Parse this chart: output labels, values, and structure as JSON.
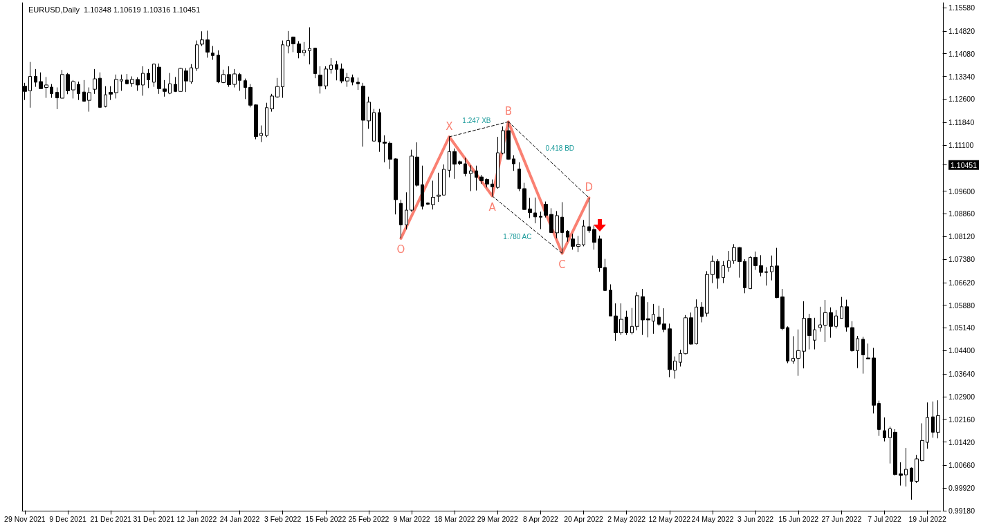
{
  "chart_data": {
    "type": "candlestick",
    "title": "EURUSD,Daily  1.10348 1.10619 1.10316 1.10451",
    "color": "#000000",
    "categories": [
      "29 Nov 2021",
      null,
      null,
      null,
      null,
      null,
      null,
      null,
      "9 Dec 2021",
      null,
      null,
      null,
      null,
      null,
      null,
      null,
      "21 Dec 2021",
      null,
      null,
      null,
      null,
      null,
      null,
      null,
      "31 Dec 2021",
      null,
      null,
      null,
      null,
      null,
      null,
      null,
      "12 Jan 2022",
      null,
      null,
      null,
      null,
      null,
      null,
      null,
      "24 Jan 2022",
      null,
      null,
      null,
      null,
      null,
      null,
      null,
      "3 Feb 2022",
      null,
      null,
      null,
      null,
      null,
      null,
      null,
      "15 Feb 2022",
      null,
      null,
      null,
      null,
      null,
      null,
      null,
      "25 Feb 2022",
      null,
      null,
      null,
      null,
      null,
      null,
      null,
      "9 Mar 2022",
      null,
      null,
      null,
      null,
      null,
      null,
      null,
      "18 Mar 2022",
      null,
      null,
      null,
      null,
      null,
      null,
      null,
      "29 Mar 2022",
      null,
      null,
      null,
      null,
      null,
      null,
      null,
      "8 Apr 2022",
      null,
      null,
      null,
      null,
      null,
      null,
      null,
      "20 Apr 2022",
      null,
      null,
      null,
      null,
      null,
      null,
      null,
      "2 May 2022",
      null,
      null,
      null,
      null,
      null,
      null,
      null,
      "12 May 2022",
      null,
      null,
      null,
      null,
      null,
      null,
      null,
      "24 May 2022",
      null,
      null,
      null,
      null,
      null,
      null,
      null,
      "3 Jun 2022",
      null,
      null,
      null,
      null,
      null,
      null,
      null,
      "15 Jun 2022",
      null,
      null,
      null,
      null,
      null,
      null,
      null,
      "27 Jun 2022",
      null,
      null,
      null,
      null,
      null,
      null,
      null,
      "7 Jul 2022",
      null,
      null,
      null,
      null,
      null,
      null,
      null,
      "19 Jul 2022",
      null,
      null
    ],
    "ohlc": [
      [
        1.1302,
        1.1313,
        1.1257,
        1.1285
      ],
      [
        1.1287,
        1.1381,
        1.1232,
        1.1334
      ],
      [
        1.1334,
        1.1358,
        1.13,
        1.1315
      ],
      [
        1.1317,
        1.1347,
        1.1294,
        1.1294
      ],
      [
        1.1298,
        1.1332,
        1.1264,
        1.1306
      ],
      [
        1.1299,
        1.1309,
        1.1264,
        1.1278
      ],
      [
        1.1282,
        1.1298,
        1.1227,
        1.1264
      ],
      [
        1.1263,
        1.1355,
        1.1263,
        1.134
      ],
      [
        1.134,
        1.1345,
        1.1276,
        1.1287
      ],
      [
        1.129,
        1.1322,
        1.1262,
        1.1317
      ],
      [
        1.1308,
        1.1317,
        1.1257,
        1.1278
      ],
      [
        1.1283,
        1.1322,
        1.1252,
        1.1253
      ],
      [
        1.1256,
        1.1298,
        1.1219,
        1.1281
      ],
      [
        1.1292,
        1.1358,
        1.1277,
        1.1326
      ],
      [
        1.1328,
        1.1347,
        1.1233,
        1.1233
      ],
      [
        1.1236,
        1.1302,
        1.1233,
        1.1274
      ],
      [
        1.1282,
        1.1302,
        1.1257,
        1.1276
      ],
      [
        1.1281,
        1.134,
        1.1262,
        1.1324
      ],
      [
        1.1319,
        1.134,
        1.1287,
        1.1324
      ],
      [
        1.1322,
        1.1342,
        1.1308,
        1.131
      ],
      [
        1.1311,
        1.1334,
        1.13,
        1.1324
      ],
      [
        1.1324,
        1.1331,
        1.1287,
        1.1306
      ],
      [
        1.1306,
        1.1367,
        1.1271,
        1.1344
      ],
      [
        1.1344,
        1.1358,
        1.1296,
        1.1323
      ],
      [
        1.1315,
        1.1376,
        1.13,
        1.1374
      ],
      [
        1.1364,
        1.1376,
        1.1277,
        1.1294
      ],
      [
        1.1293,
        1.1322,
        1.1268,
        1.1285
      ],
      [
        1.1279,
        1.1345,
        1.1276,
        1.131
      ],
      [
        1.1308,
        1.1332,
        1.1283,
        1.1285
      ],
      [
        1.1285,
        1.1362,
        1.1285,
        1.136
      ],
      [
        1.1352,
        1.1361,
        1.1283,
        1.1319
      ],
      [
        1.1316,
        1.1374,
        1.131,
        1.1362
      ],
      [
        1.136,
        1.1451,
        1.1352,
        1.1437
      ],
      [
        1.1439,
        1.1481,
        1.1433,
        1.1453
      ],
      [
        1.1453,
        1.1483,
        1.1395,
        1.1413
      ],
      [
        1.141,
        1.1433,
        1.1388,
        1.1402
      ],
      [
        1.1403,
        1.1419,
        1.1312,
        1.1316
      ],
      [
        1.1314,
        1.1356,
        1.1312,
        1.134
      ],
      [
        1.134,
        1.1367,
        1.13,
        1.1307
      ],
      [
        1.1308,
        1.1358,
        1.1298,
        1.1342
      ],
      [
        1.134,
        1.1345,
        1.1287,
        1.1321
      ],
      [
        1.132,
        1.1327,
        1.126,
        1.1298
      ],
      [
        1.1298,
        1.1309,
        1.1233,
        1.124
      ],
      [
        1.1241,
        1.1243,
        1.1129,
        1.1138
      ],
      [
        1.1141,
        1.1174,
        1.112,
        1.1148
      ],
      [
        1.1141,
        1.1248,
        1.1136,
        1.1232
      ],
      [
        1.1228,
        1.1277,
        1.1219,
        1.127
      ],
      [
        1.1267,
        1.1329,
        1.1264,
        1.1301
      ],
      [
        1.13,
        1.1451,
        1.1264,
        1.1437
      ],
      [
        1.1433,
        1.1482,
        1.1409,
        1.1451
      ],
      [
        1.1462,
        1.1464,
        1.1413,
        1.144
      ],
      [
        1.144,
        1.1449,
        1.1393,
        1.1411
      ],
      [
        1.1411,
        1.1446,
        1.14,
        1.1419
      ],
      [
        1.1418,
        1.1494,
        1.1373,
        1.1425
      ],
      [
        1.1426,
        1.1427,
        1.1328,
        1.1343
      ],
      [
        1.1338,
        1.1367,
        1.1278,
        1.1303
      ],
      [
        1.1303,
        1.1367,
        1.1292,
        1.1358
      ],
      [
        1.1357,
        1.1394,
        1.1343,
        1.1371
      ],
      [
        1.1372,
        1.1385,
        1.1321,
        1.1357
      ],
      [
        1.1358,
        1.1376,
        1.1312,
        1.1319
      ],
      [
        1.1319,
        1.1345,
        1.13,
        1.133
      ],
      [
        1.133,
        1.134,
        1.1305,
        1.1315
      ],
      [
        1.1315,
        1.133,
        1.129,
        1.131
      ],
      [
        1.1302,
        1.1313,
        1.1105,
        1.1191
      ],
      [
        1.1189,
        1.1268,
        1.1163,
        1.125
      ],
      [
        1.1123,
        1.1228,
        1.1123,
        1.1216
      ],
      [
        1.1216,
        1.1228,
        1.1088,
        1.112
      ],
      [
        1.112,
        1.1142,
        1.1054,
        1.1116
      ],
      [
        1.1116,
        1.1122,
        1.1032,
        1.1064
      ],
      [
        1.1065,
        1.1067,
        1.0884,
        1.0932
      ],
      [
        1.092,
        1.0932,
        1.0806,
        1.085
      ],
      [
        1.085,
        1.0956,
        1.0835,
        1.0898
      ],
      [
        1.0898,
        1.1095,
        1.0893,
        1.1074
      ],
      [
        1.1071,
        1.1119,
        1.0975,
        1.0979
      ],
      [
        1.0981,
        1.1043,
        1.09,
        1.0911
      ],
      [
        1.0921,
        1.0923,
        1.0915,
        1.0917
      ],
      [
        1.0916,
        1.0994,
        1.09,
        1.094
      ],
      [
        1.0943,
        1.102,
        1.0925,
        1.0947
      ],
      [
        1.0947,
        1.1047,
        1.0947,
        1.1031
      ],
      [
        1.1028,
        1.1137,
        1.1005,
        1.1089
      ],
      [
        1.1089,
        1.1099,
        1.1,
        1.1048
      ],
      [
        1.1056,
        1.1059,
        1.1045,
        1.105
      ],
      [
        1.1049,
        1.1069,
        1.1008,
        1.1017
      ],
      [
        1.1017,
        1.1044,
        1.096,
        1.1026
      ],
      [
        1.1026,
        1.1043,
        1.0962,
        1.1005
      ],
      [
        1.1006,
        1.1013,
        1.0984,
        1.0994
      ],
      [
        1.0998,
        1.1001,
        1.0972,
        1.0983
      ],
      [
        1.0983,
        1.0998,
        1.0944,
        1.0974
      ],
      [
        1.0972,
        1.1137,
        1.0968,
        1.1085
      ],
      [
        1.1084,
        1.1171,
        1.108,
        1.1157
      ],
      [
        1.1157,
        1.1186,
        1.1062,
        1.1064
      ],
      [
        1.1065,
        1.1077,
        1.1026,
        1.1049
      ],
      [
        1.1032,
        1.1054,
        1.096,
        1.0968
      ],
      [
        1.0968,
        1.0987,
        1.0899,
        1.09
      ],
      [
        1.0902,
        1.0938,
        1.0872,
        1.089
      ],
      [
        1.0889,
        1.0939,
        1.0855,
        1.0876
      ],
      [
        1.0878,
        1.0893,
        1.0836,
        1.0875
      ],
      [
        1.0917,
        1.0926,
        1.0874,
        1.0881
      ],
      [
        1.0884,
        1.0904,
        1.0825,
        1.0825
      ],
      [
        1.0824,
        1.0895,
        1.0806,
        1.088
      ],
      [
        1.0875,
        1.0924,
        1.0757,
        1.0825
      ],
      [
        1.0829,
        1.0833,
        1.0795,
        1.081
      ],
      [
        1.0804,
        1.0821,
        1.0769,
        1.078
      ],
      [
        1.078,
        1.0814,
        1.0761,
        1.0786
      ],
      [
        1.0785,
        1.0866,
        1.078,
        1.0846
      ],
      [
        1.0844,
        1.0938,
        1.0824,
        1.0831
      ],
      [
        1.0835,
        1.0848,
        1.0769,
        1.0793
      ],
      [
        1.0804,
        1.0815,
        1.0697,
        1.071
      ],
      [
        1.0711,
        1.0739,
        1.0636,
        1.0636
      ],
      [
        1.0637,
        1.0656,
        1.0553,
        1.0553
      ],
      [
        1.0553,
        1.0594,
        1.0472,
        1.0498
      ],
      [
        1.0498,
        1.0594,
        1.0491,
        1.0542
      ],
      [
        1.0549,
        1.057,
        1.0491,
        1.0498
      ],
      [
        1.0498,
        1.0579,
        1.0493,
        1.0519
      ],
      [
        1.0519,
        1.063,
        1.0506,
        1.0619
      ],
      [
        1.0616,
        1.0641,
        1.0491,
        1.054
      ],
      [
        1.0544,
        1.0598,
        1.0483,
        1.054
      ],
      [
        1.0536,
        1.0592,
        1.0495,
        1.0558
      ],
      [
        1.0549,
        1.0586,
        1.0521,
        1.0526
      ],
      [
        1.0527,
        1.0578,
        1.05,
        1.0509
      ],
      [
        1.0511,
        1.0528,
        1.0353,
        1.0378
      ],
      [
        1.0376,
        1.0421,
        1.0349,
        1.0406
      ],
      [
        1.0402,
        1.0443,
        1.0388,
        1.0431
      ],
      [
        1.043,
        1.0556,
        1.0428,
        1.0547
      ],
      [
        1.0547,
        1.0564,
        1.046,
        1.0461
      ],
      [
        1.0462,
        1.0607,
        1.046,
        1.0582
      ],
      [
        1.0582,
        1.0598,
        1.0532,
        1.0551
      ],
      [
        1.0562,
        1.0699,
        1.0551,
        1.0688
      ],
      [
        1.0688,
        1.075,
        1.066,
        1.0731
      ],
      [
        1.0731,
        1.0738,
        1.0642,
        1.0676
      ],
      [
        1.0678,
        1.0732,
        1.066,
        1.0717
      ],
      [
        1.0711,
        1.0765,
        1.0697,
        1.0733
      ],
      [
        1.0733,
        1.0787,
        1.0723,
        1.0776
      ],
      [
        1.0776,
        1.0778,
        1.0678,
        1.073
      ],
      [
        1.0731,
        1.0738,
        1.0627,
        1.0645
      ],
      [
        1.0642,
        1.0747,
        1.0641,
        1.0744
      ],
      [
        1.0744,
        1.0763,
        1.0703,
        1.0717
      ],
      [
        1.0717,
        1.0751,
        1.0682,
        1.0695
      ],
      [
        1.0697,
        1.0712,
        1.0652,
        1.0695
      ],
      [
        1.0697,
        1.075,
        1.0669,
        1.0715
      ],
      [
        1.0716,
        1.0775,
        1.0611,
        1.0613
      ],
      [
        1.0615,
        1.0641,
        1.0506,
        1.0512
      ],
      [
        1.0515,
        1.0519,
        1.0399,
        1.0406
      ],
      [
        1.0406,
        1.0487,
        1.0397,
        1.0415
      ],
      [
        1.0415,
        1.0509,
        1.0358,
        1.044
      ],
      [
        1.0438,
        1.0601,
        1.0382,
        1.0545
      ],
      [
        1.0545,
        1.056,
        1.0444,
        1.0489
      ],
      [
        1.0474,
        1.0547,
        1.0444,
        1.0508
      ],
      [
        1.0515,
        1.0583,
        1.0502,
        1.0524
      ],
      [
        1.0523,
        1.0605,
        1.0468,
        1.0564
      ],
      [
        1.0564,
        1.0581,
        1.0482,
        1.0519
      ],
      [
        1.0519,
        1.0572,
        1.0512,
        1.0553
      ],
      [
        1.0545,
        1.0615,
        1.0545,
        1.0583
      ],
      [
        1.0583,
        1.0606,
        1.0502,
        1.0517
      ],
      [
        1.0515,
        1.0536,
        1.0436,
        1.044
      ],
      [
        1.044,
        1.0488,
        1.0383,
        1.0479
      ],
      [
        1.0477,
        1.0485,
        1.0365,
        1.0426
      ],
      [
        1.0416,
        1.0463,
        1.0413,
        1.0413
      ],
      [
        1.0416,
        1.0449,
        1.0235,
        1.0262
      ],
      [
        1.0268,
        1.0277,
        1.0162,
        1.0183
      ],
      [
        1.0179,
        1.0222,
        1.0144,
        1.0156
      ],
      [
        1.0156,
        1.0192,
        1.0072,
        1.0185
      ],
      [
        1.0174,
        1.0184,
        1.0033,
        1.0036
      ],
      [
        1.0038,
        1.0076,
        1.0,
        1.0033
      ],
      [
        1.0035,
        1.0123,
        0.9997,
        1.0053
      ],
      [
        1.0057,
        1.0059,
        0.9954,
        1.0014
      ],
      [
        1.0014,
        1.01,
        1.0008,
        1.0087
      ],
      [
        1.0081,
        1.0203,
        1.0079,
        1.0147
      ],
      [
        1.0141,
        1.0271,
        1.012,
        1.0222
      ],
      [
        1.0224,
        1.0274,
        1.0156,
        1.0174
      ],
      [
        1.0174,
        1.0278,
        1.0154,
        1.0228
      ]
    ],
    "series": [
      {
        "type": "line",
        "color": "#fa8072",
        "line_style": "solid",
        "values": [
          null,
          null,
          null,
          null,
          null,
          null,
          null,
          null,
          null,
          null,
          null,
          null,
          null,
          null,
          null,
          null,
          null,
          null,
          null,
          null,
          null,
          null,
          null,
          null,
          null,
          null,
          null,
          null,
          null,
          null,
          null,
          null,
          null,
          null,
          null,
          null,
          null,
          null,
          null,
          null,
          null,
          null,
          null,
          null,
          null,
          null,
          null,
          null,
          null,
          null,
          null,
          null,
          null,
          null,
          null,
          null,
          null,
          null,
          null,
          null,
          null,
          null,
          null,
          null,
          null,
          null,
          null,
          null,
          null,
          null,
          1.0806,
          null,
          null,
          null,
          null,
          null,
          null,
          null,
          null,
          1.1137,
          null,
          null,
          null,
          null,
          null,
          null,
          null,
          1.0944,
          null,
          null,
          1.1186,
          null,
          null,
          null,
          null,
          null,
          null,
          null,
          null,
          null,
          1.0757,
          null,
          null,
          null,
          null,
          1.0938,
          null,
          null,
          null,
          null,
          null,
          null,
          null,
          null,
          null,
          null,
          null,
          null,
          null,
          null,
          null,
          null,
          null,
          null,
          null,
          null,
          null,
          null,
          null,
          null,
          null,
          null,
          null,
          null,
          null,
          null,
          null,
          null,
          null,
          null,
          null,
          null,
          null,
          null,
          null,
          null,
          null,
          null,
          null,
          null,
          null,
          null,
          null,
          null,
          null,
          null,
          null,
          null,
          null,
          null,
          null,
          null,
          null,
          null,
          null,
          null,
          null,
          null,
          null,
          null,
          null
        ]
      },
      {
        "type": "line",
        "color": "#000000",
        "line_style": "dashed",
        "values": [
          null,
          null,
          null,
          null,
          null,
          null,
          null,
          null,
          null,
          null,
          null,
          null,
          null,
          null,
          null,
          null,
          null,
          null,
          null,
          null,
          null,
          null,
          null,
          null,
          null,
          null,
          null,
          null,
          null,
          null,
          null,
          null,
          null,
          null,
          null,
          null,
          null,
          null,
          null,
          null,
          null,
          null,
          null,
          null,
          null,
          null,
          null,
          null,
          null,
          null,
          null,
          null,
          null,
          null,
          null,
          null,
          null,
          null,
          null,
          null,
          null,
          null,
          null,
          null,
          null,
          null,
          null,
          null,
          null,
          null,
          null,
          null,
          null,
          null,
          null,
          null,
          null,
          null,
          null,
          1.1137,
          null,
          null,
          null,
          null,
          null,
          null,
          null,
          null,
          null,
          null,
          1.1186,
          null,
          null,
          null,
          null,
          null,
          null,
          null,
          null,
          null,
          null,
          null,
          null,
          null,
          null,
          null,
          null,
          null,
          null,
          null,
          null,
          null,
          null,
          null,
          null,
          null,
          null,
          null,
          null,
          null,
          null,
          null,
          null,
          null,
          null,
          null,
          null,
          null,
          null,
          null,
          null,
          null,
          null,
          null,
          null,
          null,
          null,
          null,
          null,
          null,
          null,
          null,
          null,
          null,
          null,
          null,
          null,
          null,
          null,
          null,
          null,
          null,
          null,
          null,
          null,
          null,
          null,
          null,
          null,
          null,
          null,
          null,
          null,
          null,
          null,
          null,
          null,
          null,
          null,
          null,
          null
        ]
      },
      {
        "type": "line",
        "color": "#000000",
        "line_style": "dashed",
        "values": [
          null,
          null,
          null,
          null,
          null,
          null,
          null,
          null,
          null,
          null,
          null,
          null,
          null,
          null,
          null,
          null,
          null,
          null,
          null,
          null,
          null,
          null,
          null,
          null,
          null,
          null,
          null,
          null,
          null,
          null,
          null,
          null,
          null,
          null,
          null,
          null,
          null,
          null,
          null,
          null,
          null,
          null,
          null,
          null,
          null,
          null,
          null,
          null,
          null,
          null,
          null,
          null,
          null,
          null,
          null,
          null,
          null,
          null,
          null,
          null,
          null,
          null,
          null,
          null,
          null,
          null,
          null,
          null,
          null,
          null,
          null,
          null,
          null,
          null,
          null,
          null,
          null,
          null,
          null,
          null,
          null,
          null,
          null,
          null,
          null,
          null,
          null,
          null,
          null,
          null,
          1.1186,
          null,
          null,
          null,
          null,
          null,
          null,
          null,
          null,
          null,
          null,
          null,
          null,
          null,
          null,
          1.0938,
          null,
          null,
          null,
          null,
          null,
          null,
          null,
          null,
          null,
          null,
          null,
          null,
          null,
          null,
          null,
          null,
          null,
          null,
          null,
          null,
          null,
          null,
          null,
          null,
          null,
          null,
          null,
          null,
          null,
          null,
          null,
          null,
          null,
          null,
          null,
          null,
          null,
          null,
          null,
          null,
          null,
          null,
          null,
          null,
          null,
          null,
          null,
          null,
          null,
          null,
          null,
          null,
          null,
          null,
          null,
          null,
          null,
          null,
          null,
          null,
          null,
          null,
          null,
          null,
          null
        ]
      },
      {
        "type": "line",
        "color": "#000000",
        "line_style": "dashed",
        "values": [
          null,
          null,
          null,
          null,
          null,
          null,
          null,
          null,
          null,
          null,
          null,
          null,
          null,
          null,
          null,
          null,
          null,
          null,
          null,
          null,
          null,
          null,
          null,
          null,
          null,
          null,
          null,
          null,
          null,
          null,
          null,
          null,
          null,
          null,
          null,
          null,
          null,
          null,
          null,
          null,
          null,
          null,
          null,
          null,
          null,
          null,
          null,
          null,
          null,
          null,
          null,
          null,
          null,
          null,
          null,
          null,
          null,
          null,
          null,
          null,
          null,
          null,
          null,
          null,
          null,
          null,
          null,
          null,
          null,
          null,
          null,
          null,
          null,
          null,
          null,
          null,
          null,
          null,
          null,
          null,
          null,
          null,
          null,
          null,
          null,
          null,
          null,
          1.0944,
          null,
          null,
          null,
          null,
          null,
          null,
          null,
          null,
          null,
          null,
          null,
          null,
          1.0757,
          null,
          null,
          null,
          null,
          null,
          null,
          null,
          null,
          null,
          null,
          null,
          null,
          null,
          null,
          null,
          null,
          null,
          null,
          null,
          null,
          null,
          null,
          null,
          null,
          null,
          null,
          null,
          null,
          null,
          null,
          null,
          null,
          null,
          null,
          null,
          null,
          null,
          null,
          null,
          null,
          null,
          null,
          null,
          null,
          null,
          null,
          null,
          null,
          null,
          null,
          null,
          null,
          null,
          null,
          null,
          null,
          null,
          null,
          null,
          null,
          null,
          null,
          null,
          null,
          null,
          null,
          null,
          null,
          null,
          null
        ]
      }
    ],
    "annotations": [
      {
        "text": "O",
        "y": 1.0806
      },
      {
        "text": "X",
        "y": 1.1137
      },
      {
        "text": "A",
        "y": 1.0944
      },
      {
        "text": "B",
        "y": 1.1186
      },
      {
        "text": "C",
        "y": 1.0757
      },
      {
        "text": "D",
        "y": 1.0938
      },
      "1.247 XB",
      "0.418 BD",
      "1.780 AC"
    ],
    "ylim": [
      0.9918,
      1.1574
    ],
    "yticks": [
      {
        "value": 1.1558,
        "label": "1.15580"
      },
      {
        "value": 1.1482,
        "label": "1.14820"
      },
      {
        "value": 1.1408,
        "label": "1.14080"
      },
      {
        "value": 1.1334,
        "label": "1.13340"
      },
      {
        "value": 1.126,
        "label": "1.12600"
      },
      {
        "value": 1.1184,
        "label": "1.11840"
      },
      {
        "value": 1.111,
        "label": "1.11100"
      },
      {
        "value": 1.10451,
        "label": "1.10451"
      },
      {
        "value": 1.096,
        "label": "1.09600"
      },
      {
        "value": 1.0886,
        "label": "1.08860"
      },
      {
        "value": 1.0812,
        "label": "1.08120"
      },
      {
        "value": 1.0738,
        "label": "1.07380"
      },
      {
        "value": 1.0662,
        "label": "1.06620"
      },
      {
        "value": 1.0588,
        "label": "1.05880"
      },
      {
        "value": 1.0514,
        "label": "1.05140"
      },
      {
        "value": 1.044,
        "label": "1.04400"
      },
      {
        "value": 1.0364,
        "label": "1.03640"
      },
      {
        "value": 1.029,
        "label": "1.02900"
      },
      {
        "value": 1.0216,
        "label": "1.02160"
      },
      {
        "value": 1.0142,
        "label": "1.01420"
      },
      {
        "value": 1.0066,
        "label": "1.00660"
      },
      {
        "value": 0.9992,
        "label": "0.99920"
      },
      {
        "value": 0.9918,
        "label": "0.99180"
      }
    ],
    "grid": false
  }
}
